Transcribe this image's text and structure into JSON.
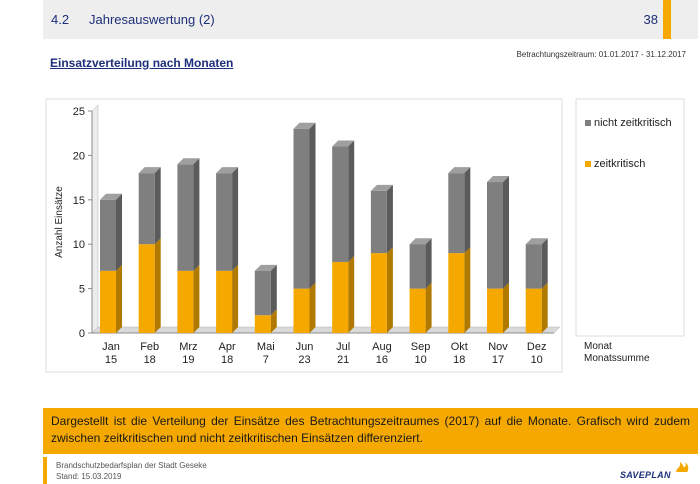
{
  "header": {
    "section_number": "4.2",
    "title": "Jahresauswertung (2)",
    "page_number": "38"
  },
  "period_label": "Betrachtungszeitraum: 01.01.2017 - 31.12.2017",
  "section_title": "Einsatzverteilung nach Monaten",
  "chart_data": {
    "type": "bar",
    "stacked": true,
    "categories": [
      "Jan",
      "Feb",
      "Mrz",
      "Apr",
      "Mai",
      "Jun",
      "Jul",
      "Aug",
      "Sep",
      "Okt",
      "Nov",
      "Dez"
    ],
    "category_totals": [
      "15",
      "18",
      "19",
      "18",
      "7",
      "23",
      "21",
      "16",
      "10",
      "18",
      "17",
      "10"
    ],
    "series": [
      {
        "name": "zeitkritisch",
        "color": "#f5a800",
        "values": [
          7,
          10,
          7,
          7,
          2,
          5,
          8,
          9,
          5,
          9,
          5,
          5
        ]
      },
      {
        "name": "nicht zeitkritisch",
        "color": "#7f7f7f",
        "values": [
          8,
          8,
          12,
          11,
          5,
          18,
          13,
          7,
          5,
          9,
          12,
          5
        ]
      }
    ],
    "ylabel": "Anzahl Einsätze",
    "xlabel": "Monat",
    "xlabel2": "Monatssumme",
    "ylim": [
      0,
      25
    ],
    "yticks": [
      "0",
      "5",
      "10",
      "15",
      "20",
      "25"
    ],
    "grid": false,
    "legend": [
      "nicht zeitkritisch",
      "zeitkritisch"
    ],
    "legend_position": "right"
  },
  "description": "Dargestellt ist die Verteilung der Einsätze des Betrachtungszeitraumes (2017) auf die Monate. Grafisch wird zudem zwischen zeitkritischen und nicht zeitkritischen Einsätzen differenziert.",
  "footer": {
    "line1": "Brandschutzbedarfsplan der Stadt Geseke",
    "line2": "Stand: 15.03.2019",
    "logo_text": "SAVEPLAN"
  },
  "colors": {
    "accent": "#f5a800",
    "navy": "#1d2f7a",
    "grey_bar": "#7f7f7f",
    "header_bg": "#eeeeee"
  }
}
